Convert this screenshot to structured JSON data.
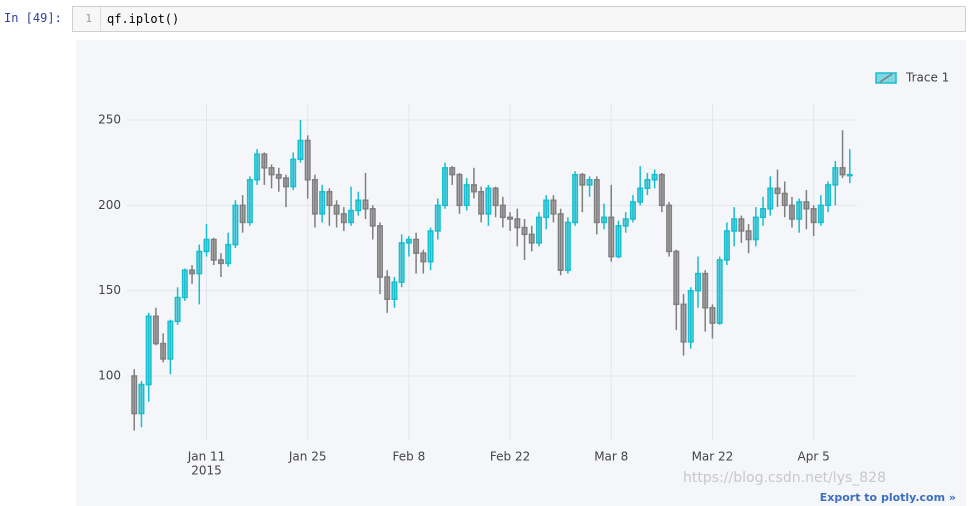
{
  "page": {
    "prompt": "In [49]:",
    "code_line_number": 1,
    "code": "qf.iplot()",
    "export_link": "Export to plotly.com »",
    "watermark": "https://blog.csdn.net/lys_828"
  },
  "chart_data": {
    "type": "candlestick",
    "x": [
      "2015-01-01",
      "2015-01-02",
      "2015-01-03",
      "2015-01-04",
      "2015-01-05",
      "2015-01-06",
      "2015-01-07",
      "2015-01-08",
      "2015-01-09",
      "2015-01-10",
      "2015-01-11",
      "2015-01-12",
      "2015-01-13",
      "2015-01-14",
      "2015-01-15",
      "2015-01-16",
      "2015-01-17",
      "2015-01-18",
      "2015-01-19",
      "2015-01-20",
      "2015-01-21",
      "2015-01-22",
      "2015-01-23",
      "2015-01-24",
      "2015-01-25",
      "2015-01-26",
      "2015-01-27",
      "2015-01-28",
      "2015-01-29",
      "2015-01-30",
      "2015-01-31",
      "2015-02-01",
      "2015-02-02",
      "2015-02-03",
      "2015-02-04",
      "2015-02-05",
      "2015-02-06",
      "2015-02-07",
      "2015-02-08",
      "2015-02-09",
      "2015-02-10",
      "2015-02-11",
      "2015-02-12",
      "2015-02-13",
      "2015-02-14",
      "2015-02-15",
      "2015-02-16",
      "2015-02-17",
      "2015-02-18",
      "2015-02-19",
      "2015-02-20",
      "2015-02-21",
      "2015-02-22",
      "2015-02-23",
      "2015-02-24",
      "2015-02-25",
      "2015-02-26",
      "2015-02-27",
      "2015-02-28",
      "2015-03-01",
      "2015-03-02",
      "2015-03-03",
      "2015-03-04",
      "2015-03-05",
      "2015-03-06",
      "2015-03-07",
      "2015-03-08",
      "2015-03-09",
      "2015-03-10",
      "2015-03-11",
      "2015-03-12",
      "2015-03-13",
      "2015-03-14",
      "2015-03-15",
      "2015-03-16",
      "2015-03-17",
      "2015-03-18",
      "2015-03-19",
      "2015-03-20",
      "2015-03-21",
      "2015-03-22",
      "2015-03-23",
      "2015-03-24",
      "2015-03-25",
      "2015-03-26",
      "2015-03-27",
      "2015-03-28",
      "2015-03-29",
      "2015-03-30",
      "2015-03-31",
      "2015-04-01",
      "2015-04-02",
      "2015-04-03",
      "2015-04-04",
      "2015-04-05",
      "2015-04-06",
      "2015-04-07",
      "2015-04-08",
      "2015-04-09",
      "2015-04-10"
    ],
    "series": [
      {
        "name": "Trace 1",
        "increasing_color": "#17becf",
        "decreasing_color": "#7f7f7f",
        "open": [
          100,
          78,
          95,
          135,
          119,
          110,
          132,
          146,
          162,
          160,
          173,
          180,
          168,
          166,
          177,
          200,
          190,
          215,
          230,
          222,
          218,
          216,
          211,
          227,
          238,
          215,
          195,
          208,
          200,
          195,
          190,
          197,
          203,
          198,
          188,
          158,
          145,
          155,
          178,
          180,
          172,
          167,
          185,
          200,
          222,
          218,
          200,
          212,
          208,
          195,
          210,
          200,
          193,
          192,
          187,
          183,
          178,
          193,
          203,
          195,
          162,
          190,
          218,
          212,
          215,
          190,
          193,
          170,
          188,
          192,
          202,
          210,
          215,
          218,
          200,
          173,
          142,
          120,
          150,
          160,
          140,
          131,
          168,
          185,
          192,
          185,
          180,
          193,
          198,
          210,
          207,
          200,
          192,
          202,
          198,
          190,
          200,
          212,
          222,
          218
        ],
        "high": [
          104,
          97,
          137,
          140,
          125,
          133,
          152,
          163,
          165,
          177,
          189,
          181,
          172,
          184,
          203,
          206,
          217,
          233,
          231,
          224,
          222,
          218,
          231,
          250,
          241,
          218,
          212,
          210,
          203,
          199,
          211,
          208,
          219,
          200,
          190,
          162,
          158,
          183,
          182,
          184,
          174,
          187,
          204,
          225,
          223,
          219,
          216,
          222,
          211,
          212,
          211,
          205,
          196,
          198,
          192,
          188,
          196,
          206,
          206,
          198,
          193,
          220,
          219,
          217,
          217,
          201,
          212,
          191,
          196,
          206,
          223,
          219,
          221,
          219,
          202,
          174,
          148,
          152,
          170,
          162,
          142,
          170,
          190,
          199,
          194,
          189,
          199,
          205,
          217,
          221,
          214,
          205,
          204,
          209,
          200,
          206,
          214,
          226,
          244,
          233
        ],
        "low": [
          68,
          70,
          85,
          118,
          108,
          101,
          130,
          144,
          154,
          142,
          170,
          165,
          158,
          164,
          175,
          184,
          188,
          212,
          212,
          210,
          208,
          199,
          209,
          225,
          204,
          187,
          190,
          188,
          187,
          185,
          188,
          194,
          192,
          180,
          148,
          137,
          140,
          152,
          170,
          160,
          160,
          162,
          180,
          198,
          212,
          195,
          197,
          204,
          190,
          188,
          193,
          187,
          185,
          176,
          168,
          173,
          176,
          186,
          190,
          159,
          160,
          188,
          196,
          205,
          183,
          186,
          167,
          169,
          184,
          190,
          200,
          206,
          210,
          196,
          170,
          127,
          112,
          116,
          140,
          126,
          122,
          130,
          165,
          176,
          178,
          172,
          176,
          188,
          194,
          199,
          193,
          187,
          184,
          186,
          182,
          188,
          196,
          200,
          216,
          213
        ],
        "close": [
          78,
          95,
          135,
          119,
          110,
          132,
          146,
          162,
          160,
          173,
          180,
          168,
          166,
          177,
          200,
          190,
          215,
          230,
          222,
          218,
          216,
          211,
          227,
          238,
          215,
          195,
          208,
          200,
          195,
          190,
          197,
          203,
          198,
          188,
          158,
          145,
          155,
          178,
          180,
          172,
          167,
          185,
          200,
          222,
          218,
          200,
          212,
          208,
          195,
          210,
          200,
          193,
          192,
          187,
          183,
          178,
          193,
          203,
          195,
          162,
          190,
          218,
          212,
          215,
          190,
          193,
          170,
          188,
          192,
          202,
          210,
          215,
          218,
          200,
          173,
          142,
          120,
          150,
          160,
          140,
          131,
          168,
          185,
          192,
          185,
          180,
          193,
          198,
          210,
          207,
          200,
          192,
          202,
          198,
          190,
          200,
          212,
          222,
          218,
          218
        ]
      }
    ],
    "xlim": [
      "2014-12-31",
      "2015-04-11"
    ],
    "xticks": [
      {
        "value": "2015-01-11",
        "label": "Jan 11",
        "sublabel": "2015"
      },
      {
        "value": "2015-01-25",
        "label": "Jan 25"
      },
      {
        "value": "2015-02-08",
        "label": "Feb 8"
      },
      {
        "value": "2015-02-22",
        "label": "Feb 22"
      },
      {
        "value": "2015-03-08",
        "label": "Mar 8"
      },
      {
        "value": "2015-03-22",
        "label": "Mar 22"
      },
      {
        "value": "2015-04-05",
        "label": "Apr 5"
      }
    ],
    "ylim": [
      62.5,
      259.4
    ],
    "yticks": [
      100,
      150,
      200,
      250
    ],
    "grid": true,
    "legend": "top-right"
  }
}
